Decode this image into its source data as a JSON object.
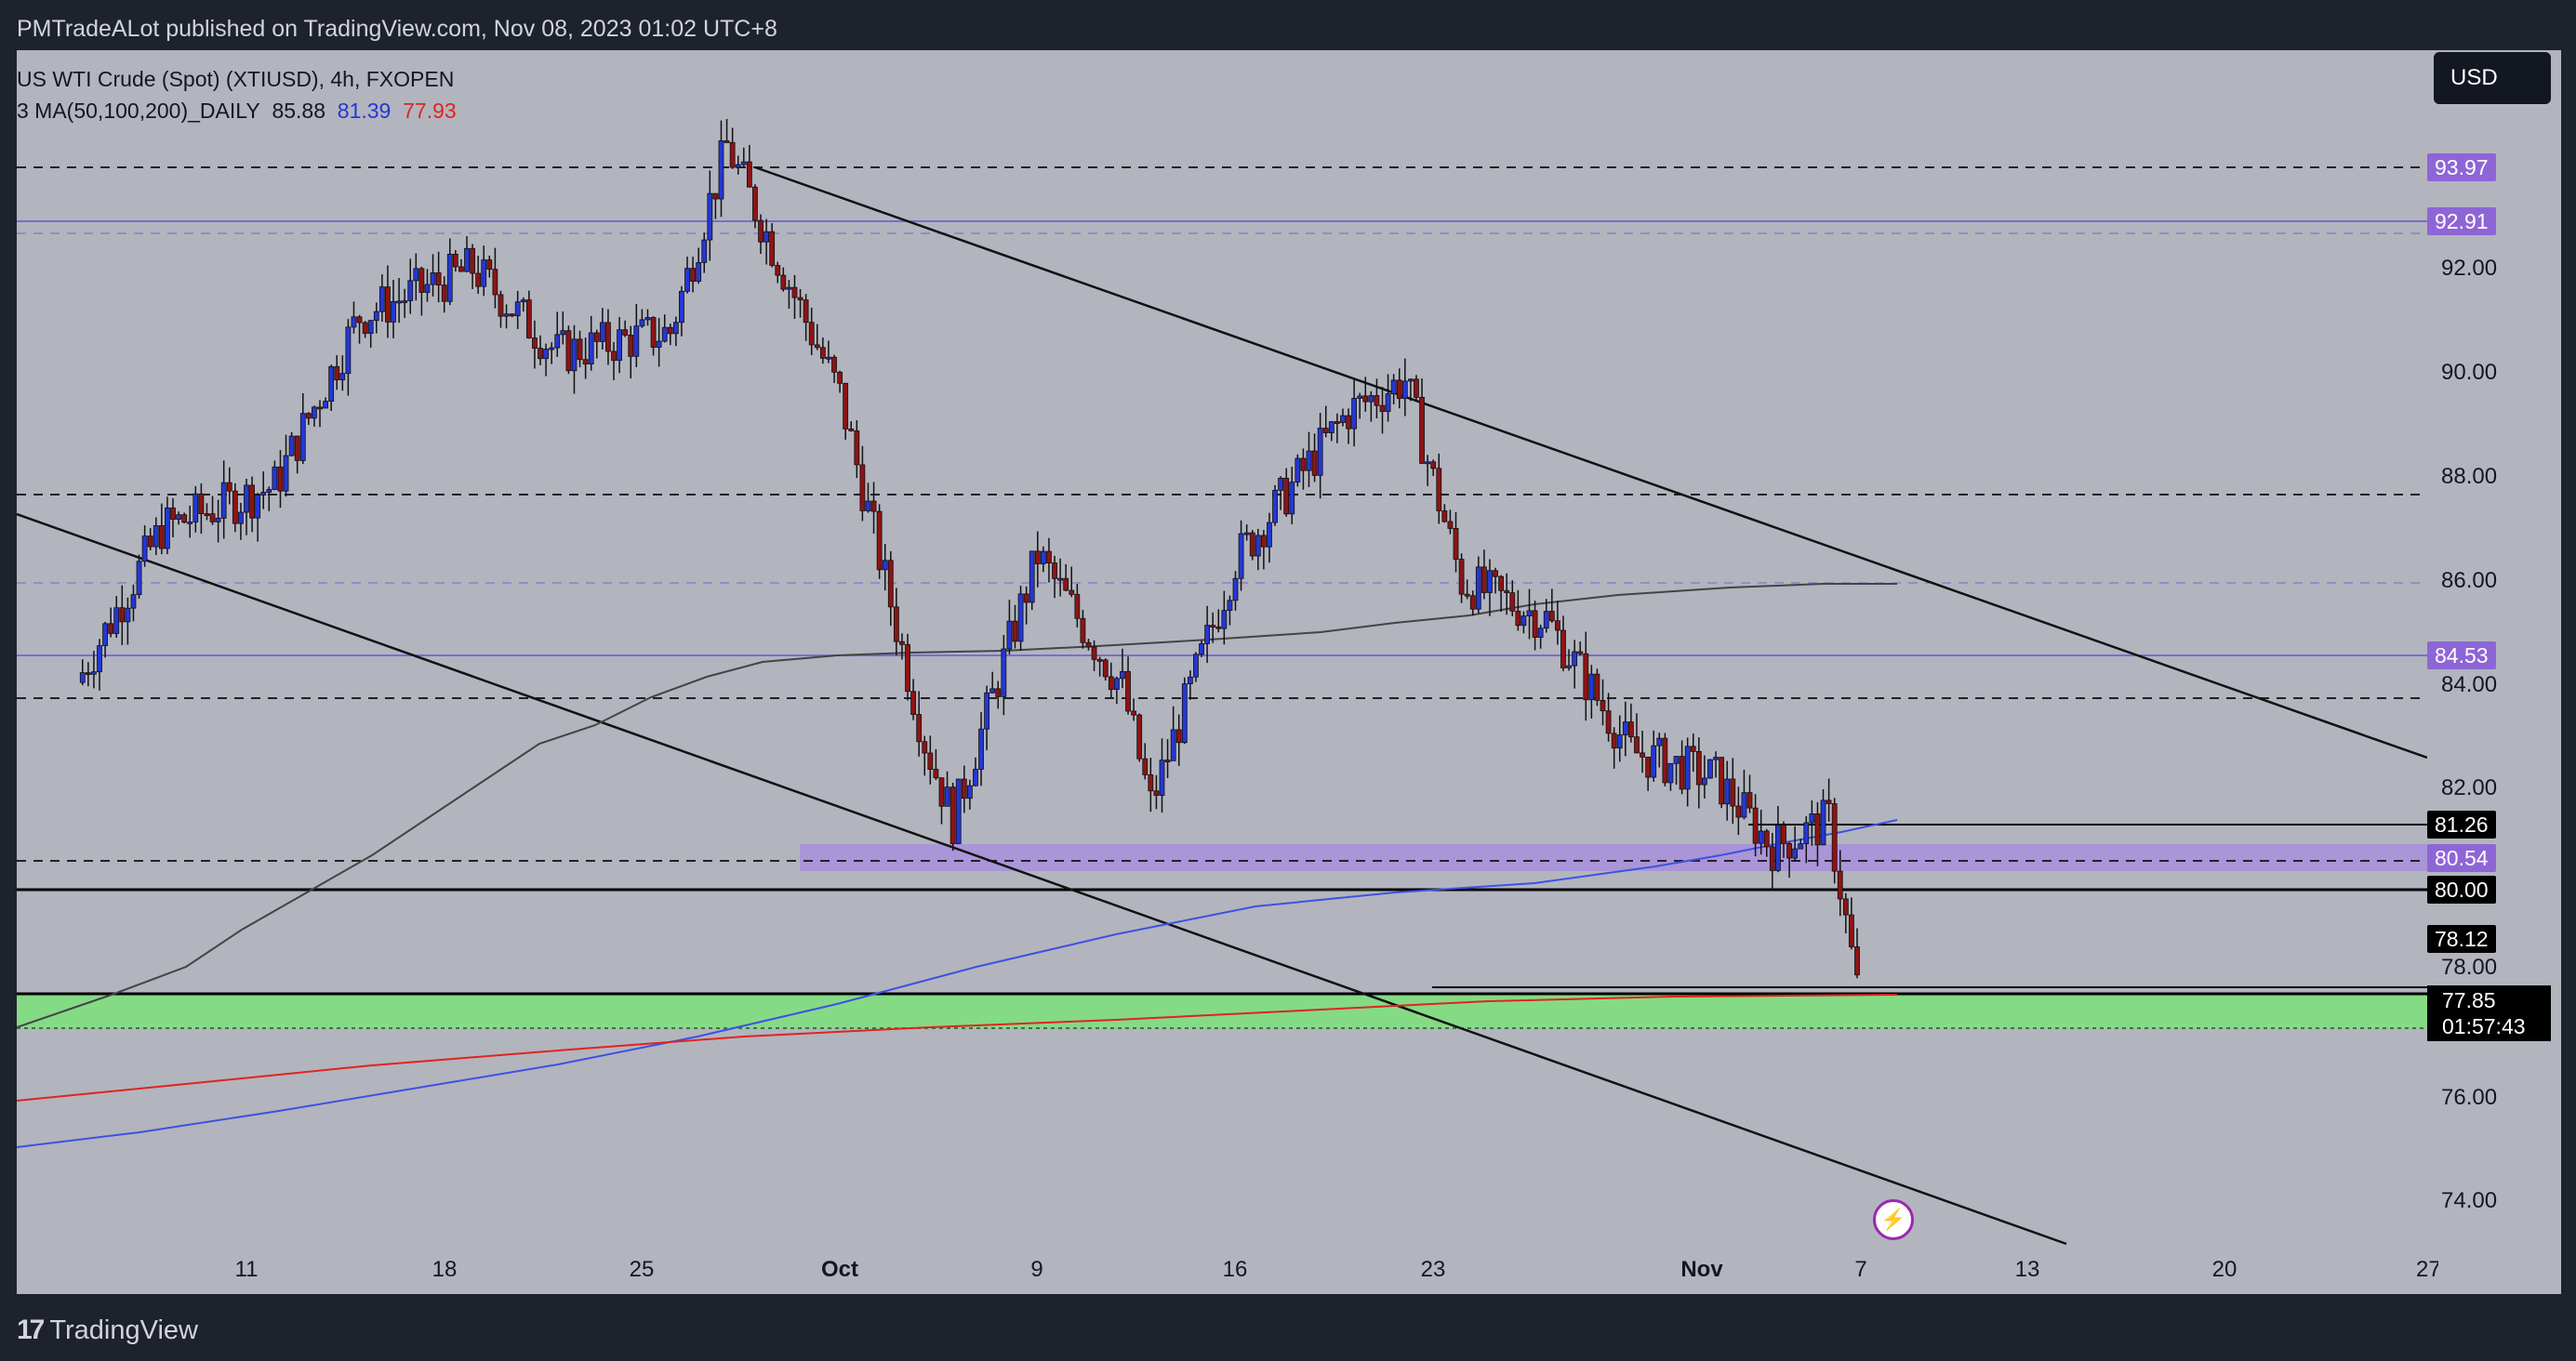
{
  "header": {
    "published": "PMTradeALot published on TradingView.com, Nov 08, 2023 01:02 UTC+8"
  },
  "legend": {
    "symbol": "US WTI Crude (Spot) (XTIUSD), 4h, FXOPEN",
    "ma_name": "3 MA(50,100,200)_DAILY",
    "ma1": "85.88",
    "ma2": "81.39",
    "ma3": "77.93"
  },
  "currency_button": "USD",
  "price_axis": {
    "ticks": [
      "92.00",
      "90.00",
      "88.00",
      "86.00",
      "84.00",
      "82.00",
      "78.00",
      "76.00",
      "74.00"
    ],
    "badges_purple": [
      "93.97",
      "92.91",
      "84.53",
      "80.54"
    ],
    "badges_black": [
      "81.26",
      "80.00",
      "78.12"
    ],
    "last_price": "77.85",
    "countdown": "01:57:43"
  },
  "time_axis": {
    "labels": [
      "11",
      "18",
      "25",
      "Oct",
      "9",
      "16",
      "23",
      "Nov",
      "7",
      "13",
      "20",
      "27"
    ]
  },
  "footer": {
    "brand": "TradingView"
  },
  "colors": {
    "background": "#b2b5be",
    "dark": "#1e222d",
    "bull_candle": "#2537d4",
    "bear_candle": "#8e1414",
    "zone_purple": "#a58be0",
    "zone_green": "#7de07d",
    "ma_blue": "#3d52e0",
    "ma_red": "#e0241f",
    "ma_grey": "#444444"
  },
  "chart_data": {
    "type": "candlestick",
    "title": "US WTI Crude (Spot) (XTIUSD), 4h, FXOPEN",
    "xlabel": "",
    "ylabel": "",
    "ylim": [
      73.0,
      95.5
    ],
    "x_ticks": [
      "11",
      "18",
      "25",
      "Oct",
      "9",
      "16",
      "23",
      "Nov",
      "7",
      "13",
      "20",
      "27"
    ],
    "approx_path": [
      {
        "x": "Sep 5",
        "close": 83.6
      },
      {
        "x": "Sep 8",
        "close": 86.5
      },
      {
        "x": "Sep 12",
        "close": 87.3
      },
      {
        "x": "Sep 15",
        "close": 90.5
      },
      {
        "x": "Sep 19",
        "close": 91.4
      },
      {
        "x": "Sep 22",
        "close": 89.8
      },
      {
        "x": "Sep 26",
        "close": 90.2
      },
      {
        "x": "Sep 28",
        "close": 93.7
      },
      {
        "x": "Oct 2",
        "close": 89.0
      },
      {
        "x": "Oct 5",
        "close": 82.5
      },
      {
        "x": "Oct 6",
        "close": 81.0
      },
      {
        "x": "Oct 9",
        "close": 86.0
      },
      {
        "x": "Oct 12",
        "close": 83.5
      },
      {
        "x": "Oct 13",
        "close": 81.3
      },
      {
        "x": "Oct 16",
        "close": 85.9
      },
      {
        "x": "Oct 20",
        "close": 88.7
      },
      {
        "x": "Oct 22",
        "close": 89.3
      },
      {
        "x": "Oct 24",
        "close": 85.5
      },
      {
        "x": "Oct 27",
        "close": 84.8
      },
      {
        "x": "Oct 30",
        "close": 82.3
      },
      {
        "x": "Nov 2",
        "close": 81.8
      },
      {
        "x": "Nov 4",
        "close": 80.5
      },
      {
        "x": "Nov 6",
        "close": 81.0
      },
      {
        "x": "Nov 7",
        "close": 77.85
      }
    ],
    "moving_averages": [
      {
        "name": "MA50",
        "last": 85.88
      },
      {
        "name": "MA100",
        "last": 81.39
      },
      {
        "name": "MA200",
        "last": 77.93
      }
    ],
    "horizontal_levels": [
      93.97,
      92.91,
      88.0,
      86.0,
      84.53,
      84.0,
      81.26,
      80.54,
      80.0,
      78.12,
      77.85
    ],
    "zones": [
      {
        "name": "purple zone",
        "from": 80.3,
        "to": 80.85
      },
      {
        "name": "green zone",
        "from": 77.3,
        "to": 78.0
      }
    ],
    "trendlines": [
      {
        "name": "upper channel",
        "from": {
          "x": "Sep 28",
          "y": 93.97
        },
        "to": {
          "x": "Nov 26",
          "y": 82.5
        }
      },
      {
        "name": "lower channel",
        "from": {
          "x": "Sep 5",
          "y": 87.5
        },
        "to": {
          "x": "Nov 14",
          "y": 73.4
        }
      }
    ]
  }
}
